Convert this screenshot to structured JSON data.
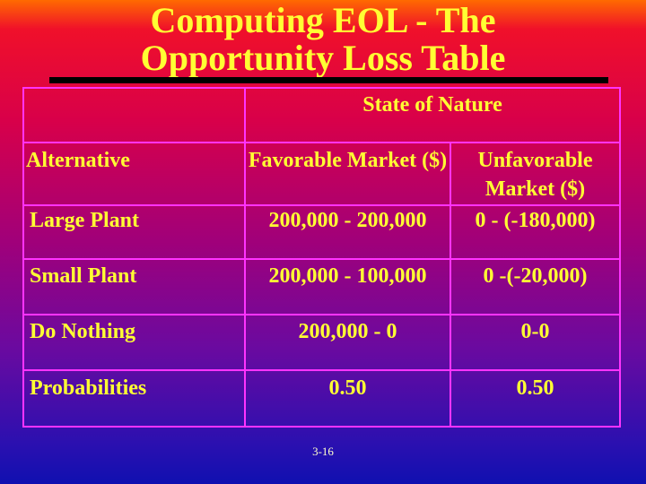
{
  "title": [
    "Computing EOL - The",
    "Opportunity Loss Table"
  ],
  "table": {
    "group_header": "State of Nature",
    "col_alt": "Alternative",
    "col_fav": "Favorable Market ($)",
    "col_unfav": "Unfavorable Market ($)",
    "rows": [
      {
        "alt": "Large Plant",
        "fav": "200,000 - 200,000",
        "unfav": "0 - (-180,000)"
      },
      {
        "alt": "Small Plant",
        "fav": "200,000 - 100,000",
        "unfav": "0 -(-20,000)"
      },
      {
        "alt": "Do Nothing",
        "fav": "200,000 - 0",
        "unfav": "0-0"
      },
      {
        "alt": "Probabilities",
        "fav": "0.50",
        "unfav": "0.50"
      }
    ]
  },
  "footer": "3-16",
  "colors": {
    "text": "#ffff33",
    "grid": "#ff33ff"
  }
}
